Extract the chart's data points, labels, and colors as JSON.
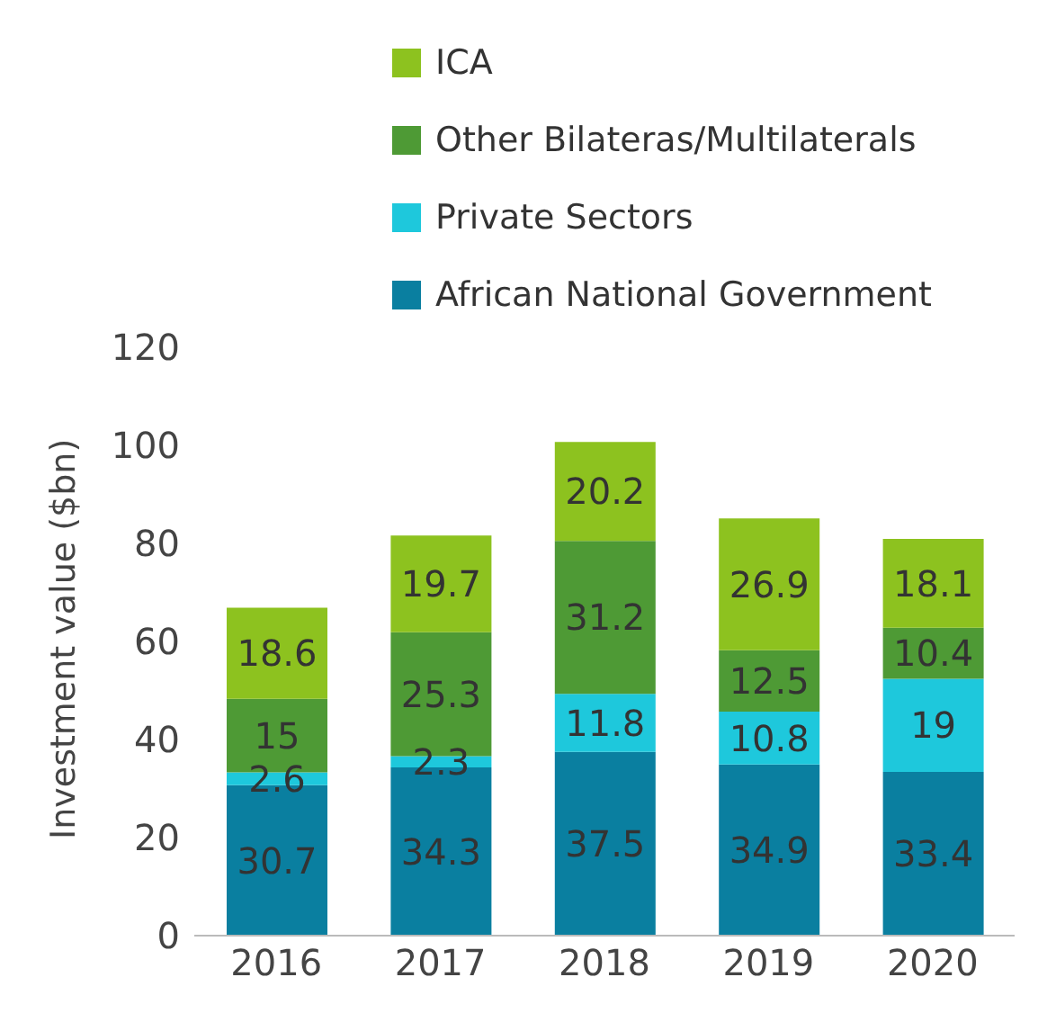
{
  "chart_data": {
    "type": "bar",
    "stacked": true,
    "ylabel": "Investment value  ($bn)",
    "categories": [
      "2016",
      "2017",
      "2018",
      "2019",
      "2020"
    ],
    "series": [
      {
        "name": "African National Government",
        "color": "#0a7fa0",
        "values": [
          30.7,
          34.3,
          37.5,
          34.9,
          33.4
        ]
      },
      {
        "name": "Private Sectors",
        "color": "#1ec8dc",
        "values": [
          2.6,
          2.3,
          11.8,
          10.8,
          19
        ]
      },
      {
        "name": "Other Bilateras/Multilaterals",
        "color": "#4e9a35",
        "values": [
          15,
          25.3,
          31.2,
          12.5,
          10.4
        ]
      },
      {
        "name": "ICA",
        "color": "#8dc21f",
        "values": [
          18.6,
          19.7,
          20.2,
          26.9,
          18.1
        ]
      }
    ],
    "ylim": [
      0,
      120
    ],
    "yticks": [
      0,
      20,
      40,
      60,
      80,
      100,
      120
    ],
    "grid": false,
    "legend": "top",
    "data_labels": true
  }
}
